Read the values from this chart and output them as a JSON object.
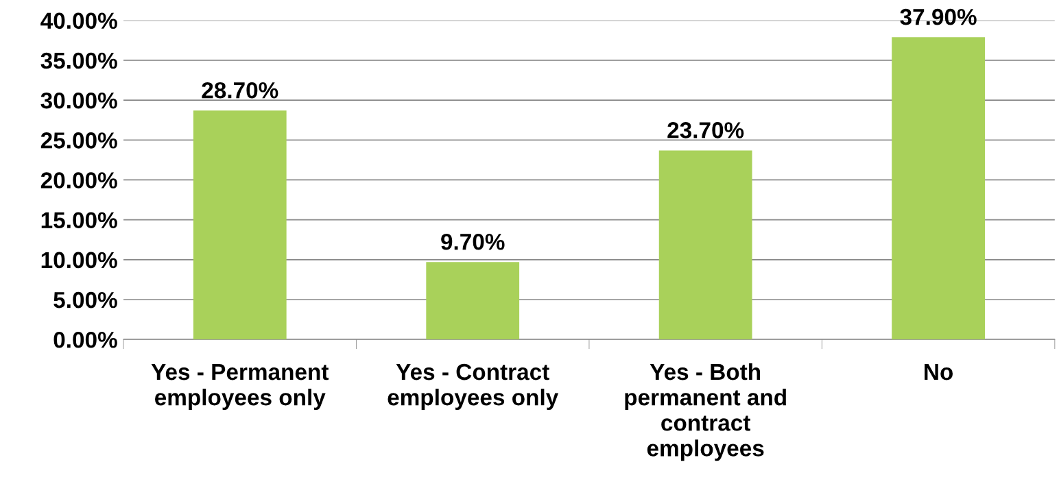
{
  "chart_data": {
    "type": "bar",
    "categories": [
      "Yes - Permanent\nemployees only",
      "Yes - Contract\nemployees only",
      "Yes - Both\npermanent and\ncontract\nemployees",
      "No"
    ],
    "values": [
      28.7,
      9.7,
      23.7,
      37.9
    ],
    "value_labels": [
      "28.70%",
      "9.70%",
      "23.70%",
      "37.90%"
    ],
    "color": "#a9d15a",
    "ylim": [
      0,
      40
    ],
    "yticks": [
      {
        "value": 0,
        "label": "0.00%"
      },
      {
        "value": 5,
        "label": "5.00%"
      },
      {
        "value": 10,
        "label": "10.00%"
      },
      {
        "value": 15,
        "label": "15.00%"
      },
      {
        "value": 20,
        "label": "20.00%"
      },
      {
        "value": 25,
        "label": "25.00%"
      },
      {
        "value": 30,
        "label": "30.00%"
      },
      {
        "value": 35,
        "label": "35.00%"
      },
      {
        "value": 40,
        "label": "40.00%"
      }
    ],
    "grid": "y",
    "legend": false
  }
}
